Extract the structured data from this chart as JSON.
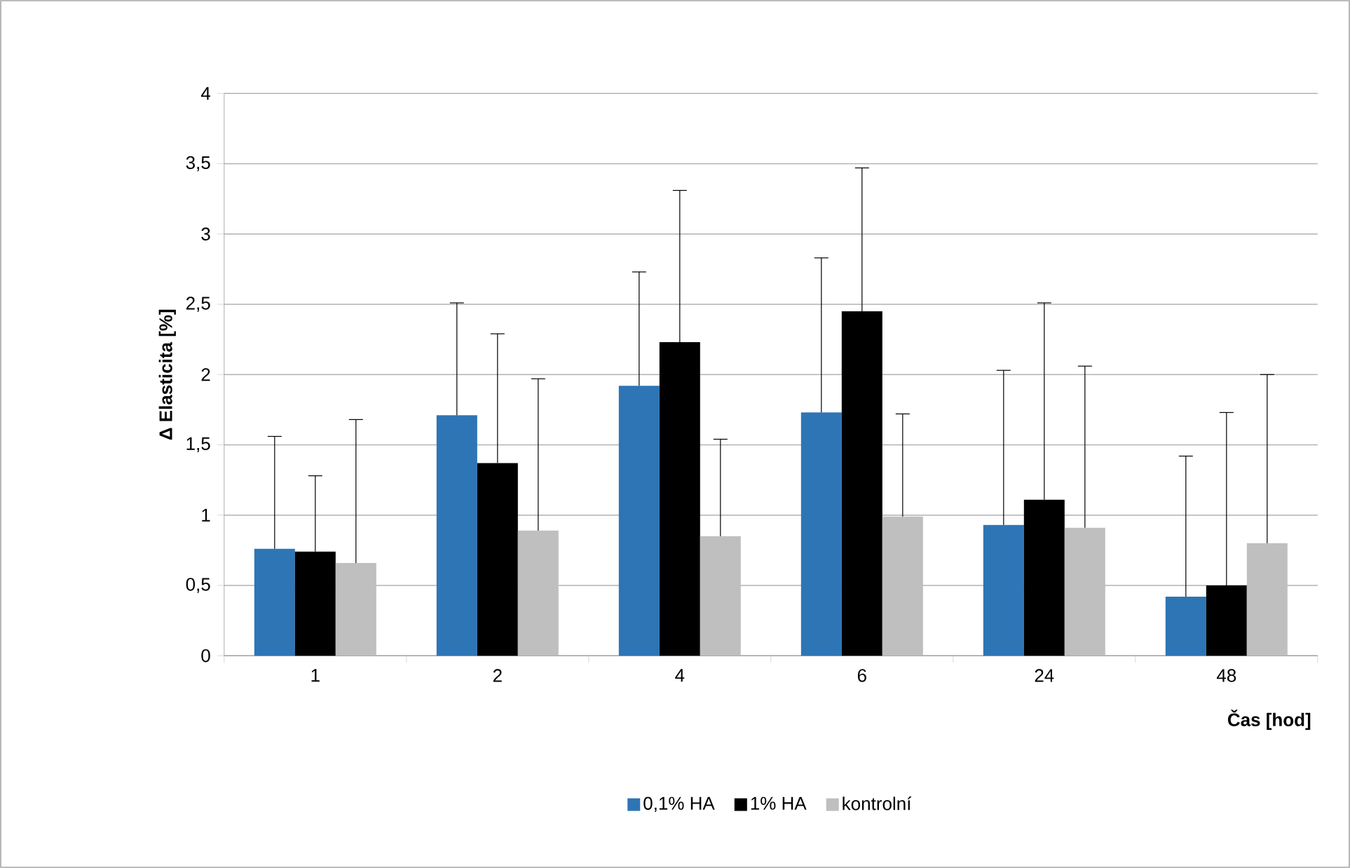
{
  "chart_data": {
    "type": "bar",
    "xlabel": "Čas [hod]",
    "ylabel": "Δ Elasticita [%]",
    "categories": [
      "1",
      "2",
      "4",
      "6",
      "24",
      "48"
    ],
    "series": [
      {
        "name": "0,1% HA",
        "color": "#2e75b6",
        "values": [
          0.76,
          1.71,
          1.92,
          1.73,
          0.93,
          0.42
        ],
        "errors": [
          [
            0.76,
            1.56
          ],
          [
            1.71,
            2.51
          ],
          [
            1.92,
            2.73
          ],
          [
            1.73,
            2.83
          ],
          [
            0.93,
            2.03
          ],
          [
            0.42,
            1.42
          ]
        ]
      },
      {
        "name": "1% HA",
        "color": "#000000",
        "values": [
          0.74,
          1.37,
          2.23,
          2.45,
          1.11,
          0.5
        ],
        "errors": [
          [
            0.74,
            1.28
          ],
          [
            1.37,
            2.29
          ],
          [
            2.23,
            3.31
          ],
          [
            2.45,
            3.47
          ],
          [
            1.11,
            2.51
          ],
          [
            0.5,
            1.73
          ]
        ]
      },
      {
        "name": "kontrolní",
        "color": "#bfbfbf",
        "values": [
          0.66,
          0.89,
          0.85,
          0.99,
          0.91,
          0.8
        ],
        "errors": [
          [
            0.66,
            1.68
          ],
          [
            0.89,
            1.97
          ],
          [
            0.85,
            1.54
          ],
          [
            0.99,
            1.72
          ],
          [
            0.91,
            2.06
          ],
          [
            0.8,
            2.0
          ]
        ]
      }
    ],
    "ylim": [
      0,
      4
    ],
    "yticks": [
      0,
      {
        "value": 0.5,
        "label": "0,5"
      },
      1,
      {
        "value": 1.5,
        "label": "1,5"
      },
      2,
      {
        "value": 2.5,
        "label": "2,5"
      },
      3,
      {
        "value": 3.5,
        "label": "3,5"
      },
      4
    ],
    "grid": "y",
    "legend": "bottom"
  }
}
